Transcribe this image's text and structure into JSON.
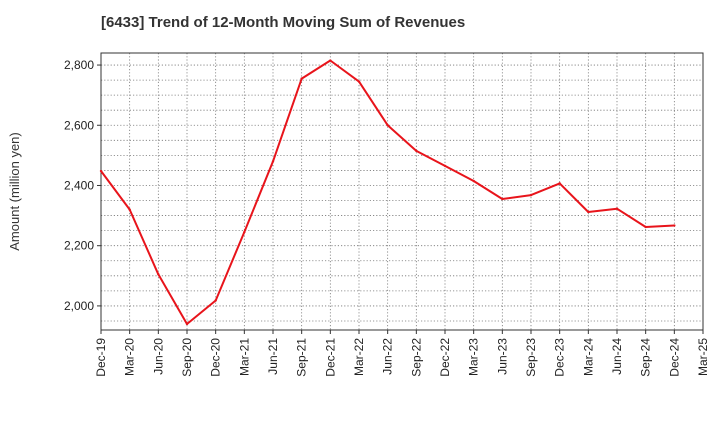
{
  "chart_data": {
    "type": "line",
    "title": "[6433]  Trend of 12-Month Moving Sum of Revenues",
    "ylabel": "Amount (million yen)",
    "xlabel": "",
    "ylim": [
      1920,
      2840
    ],
    "yticks": [
      2000,
      2200,
      2400,
      2600,
      2800
    ],
    "ytick_labels": [
      "2,000",
      "2,200",
      "2,400",
      "2,600",
      "2,800"
    ],
    "categories": [
      "Dec-19",
      "Mar-20",
      "Jun-20",
      "Sep-20",
      "Dec-20",
      "Mar-21",
      "Jun-21",
      "Sep-21",
      "Dec-21",
      "Mar-22",
      "Jun-22",
      "Sep-22",
      "Dec-22",
      "Mar-23",
      "Jun-23",
      "Sep-23",
      "Dec-23",
      "Mar-24",
      "Jun-24",
      "Sep-24",
      "Dec-24",
      "Mar-25"
    ],
    "series": [
      {
        "name": "",
        "color": "#e8141b",
        "values": [
          2448,
          2320,
          2105,
          1940,
          2018,
          2245,
          2480,
          2755,
          2815,
          2745,
          2600,
          2515,
          2465,
          2415,
          2355,
          2368,
          2407,
          2312,
          2323,
          2262,
          2267,
          null
        ]
      }
    ],
    "grid": true,
    "legend": "none"
  }
}
